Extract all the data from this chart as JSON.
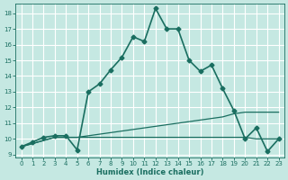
{
  "xlabel": "Humidex (Indice chaleur)",
  "background_color": "#c5e8e2",
  "grid_color": "#ffffff",
  "line_color": "#1a6e60",
  "xlim": [
    -0.5,
    23.5
  ],
  "ylim": [
    8.8,
    18.6
  ],
  "yticks": [
    9,
    10,
    11,
    12,
    13,
    14,
    15,
    16,
    17,
    18
  ],
  "xticks": [
    0,
    1,
    2,
    3,
    4,
    5,
    6,
    7,
    8,
    9,
    10,
    11,
    12,
    13,
    14,
    15,
    16,
    17,
    18,
    19,
    20,
    21,
    22,
    23
  ],
  "series": [
    {
      "x": [
        0,
        1,
        2,
        3,
        4,
        5,
        6,
        7,
        8,
        9,
        10,
        11,
        12,
        13,
        14,
        15,
        16,
        17,
        18,
        19,
        20,
        21,
        22,
        23
      ],
      "y": [
        9.5,
        9.8,
        10.1,
        10.2,
        10.2,
        9.3,
        13.0,
        13.5,
        14.4,
        15.2,
        16.5,
        16.2,
        18.3,
        17.0,
        17.0,
        15.0,
        14.3,
        14.7,
        13.2,
        11.8,
        10.0,
        10.7,
        9.2,
        10.0
      ],
      "marker": "D",
      "markersize": 2.5,
      "linewidth": 1.2
    },
    {
      "x": [
        0,
        1,
        2,
        3,
        4,
        5,
        6,
        7,
        8,
        9,
        10,
        11,
        12,
        13,
        14,
        15,
        16,
        17,
        18,
        19,
        20,
        21,
        22,
        23
      ],
      "y": [
        9.5,
        9.7,
        9.9,
        10.1,
        10.1,
        10.1,
        10.2,
        10.3,
        10.4,
        10.5,
        10.6,
        10.7,
        10.8,
        10.9,
        11.0,
        11.1,
        11.2,
        11.3,
        11.4,
        11.6,
        11.7,
        11.7,
        11.7,
        11.7
      ],
      "marker": null,
      "linewidth": 0.9
    },
    {
      "x": [
        0,
        1,
        2,
        3,
        4,
        5,
        6,
        7,
        8,
        9,
        10,
        11,
        12,
        13,
        14,
        15,
        16,
        17,
        18,
        19,
        20,
        21,
        22,
        23
      ],
      "y": [
        9.5,
        9.7,
        9.9,
        10.1,
        10.1,
        10.1,
        10.1,
        10.1,
        10.1,
        10.1,
        10.1,
        10.1,
        10.1,
        10.1,
        10.1,
        10.1,
        10.1,
        10.1,
        10.1,
        10.1,
        10.1,
        10.0,
        10.0,
        10.0
      ],
      "marker": null,
      "linewidth": 0.9
    }
  ]
}
